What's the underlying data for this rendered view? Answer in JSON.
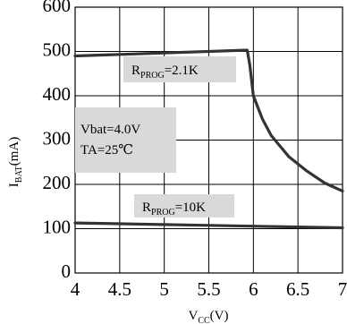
{
  "chart_data": {
    "type": "line",
    "xlabel": {
      "main": "V",
      "sub": "CC",
      "unit": "(V)"
    },
    "ylabel": {
      "main": "I",
      "sub": "BAT",
      "unit": "(mA)"
    },
    "xlim": [
      4,
      7
    ],
    "ylim": [
      0,
      600
    ],
    "x_ticks": [
      "4",
      "4.5",
      "5",
      "5.5",
      "6",
      "6.5",
      "7"
    ],
    "y_ticks": [
      "0",
      "100",
      "200",
      "300",
      "400",
      "500",
      "600"
    ],
    "grid": true,
    "series": [
      {
        "label": {
          "main": "R",
          "sub": "PROG",
          "value": "=2.1K"
        },
        "x": [
          4.0,
          5.93,
          5.96,
          6.0,
          6.1,
          6.2,
          6.4,
          6.6,
          6.8,
          7.0
        ],
        "y": [
          490,
          503,
          470,
          400,
          348,
          310,
          262,
          230,
          203,
          185
        ]
      },
      {
        "label": {
          "main": "R",
          "sub": "PROG",
          "value": "=10K"
        },
        "x": [
          4.0,
          7.0
        ],
        "y": [
          113,
          102
        ]
      }
    ],
    "annotations": [
      {
        "line1": "Vbat=4.0V",
        "line2": "TA=25℃"
      }
    ],
    "colors": {
      "line": "#333333",
      "label_box": "#d9d9d9",
      "grid": "#000000"
    }
  }
}
